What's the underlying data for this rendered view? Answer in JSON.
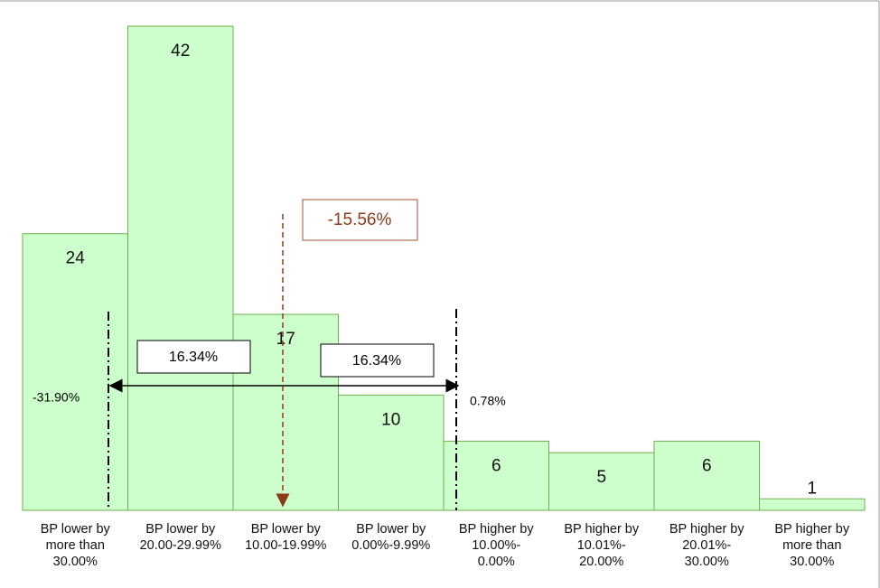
{
  "chart_data": {
    "type": "bar",
    "categories": [
      "BP lower by\nmore than\n30.00%",
      "BP lower by\n20.00-29.99%",
      "BP lower by\n10.00-19.99%",
      "BP lower by\n0.00%-9.99%",
      "BP higher by\n10.00%-\n0.00%",
      "BP higher by\n10.01%-\n20.00%",
      "BP higher by\n20.01%-\n30.00%",
      "BP higher by\nmore than\n30.00%"
    ],
    "values": [
      24,
      42,
      17,
      10,
      6,
      5,
      6,
      1
    ],
    "color": "#ccffcc",
    "annotations": {
      "mean": "-15.56%",
      "left_span": "16.34%",
      "right_span": "16.34%",
      "lower": "-31.90%",
      "upper": "0.78%"
    }
  }
}
